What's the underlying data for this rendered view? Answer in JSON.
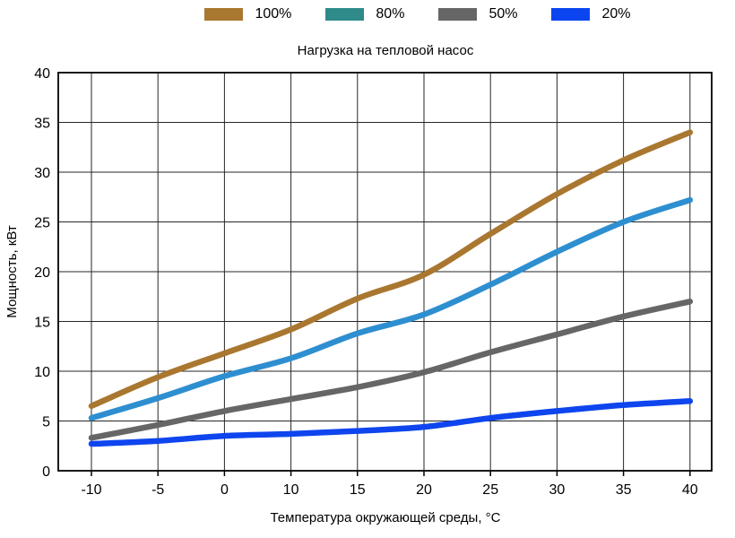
{
  "figure": {
    "background": "#ffffff",
    "text_color": "#000000",
    "grid_color": "#262626",
    "border_color": "#000000"
  },
  "chart_data": {
    "type": "line",
    "title": "Нагрузка на тепловой насос",
    "xlabel": "Температура окружающей среды, °C",
    "ylabel": "Мощность, кВт",
    "categories": [
      "-10",
      "-5",
      "0",
      "10",
      "15",
      "20",
      "25",
      "30",
      "35",
      "40"
    ],
    "y_ticks": [
      0,
      5,
      10,
      15,
      20,
      25,
      30,
      35,
      40
    ],
    "ylim": [
      0,
      40
    ],
    "grid": true,
    "legend_position": "top",
    "line_width": 6.5,
    "smooth": true,
    "series": [
      {
        "name": "100%",
        "legend_color": "#a9772f",
        "line_color": "#a9772f",
        "values": [
          6.5,
          9.4,
          11.8,
          14.2,
          17.3,
          19.7,
          23.8,
          27.8,
          31.2,
          34.0
        ]
      },
      {
        "name": "80%",
        "legend_color": "#2f8a8a",
        "line_color": "#2e8fd0",
        "values": [
          5.3,
          7.3,
          9.5,
          11.3,
          13.8,
          15.7,
          18.7,
          22.0,
          25.0,
          27.2
        ]
      },
      {
        "name": "50%",
        "legend_color": "#666666",
        "line_color": "#666666",
        "values": [
          3.3,
          4.6,
          6.0,
          7.2,
          8.4,
          9.9,
          11.9,
          13.7,
          15.5,
          17.0
        ]
      },
      {
        "name": "20%",
        "legend_color": "#0b45f0",
        "line_color": "#0e45ee",
        "values": [
          2.7,
          3.0,
          3.5,
          3.7,
          4.0,
          4.4,
          5.3,
          6.0,
          6.6,
          7.0
        ]
      }
    ]
  }
}
